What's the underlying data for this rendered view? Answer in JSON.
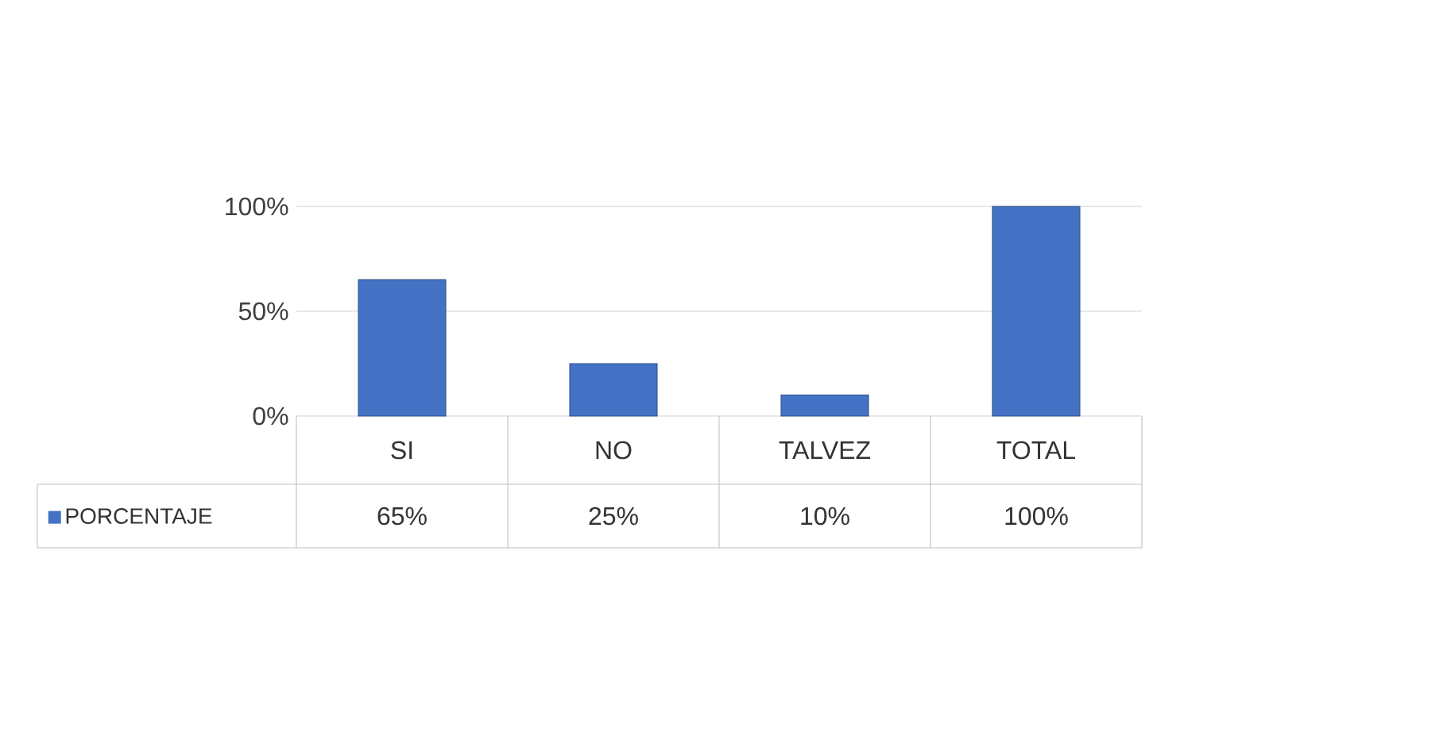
{
  "chart_data": {
    "type": "bar",
    "categories": [
      "SI",
      "NO",
      "TALVEZ",
      "TOTAL"
    ],
    "series": [
      {
        "name": "PORCENTAJE",
        "color": "#4472c4",
        "values": [
          65,
          25,
          10,
          100
        ],
        "value_labels": [
          "65%",
          "25%",
          "10%",
          "100%"
        ]
      }
    ],
    "ylim": [
      0,
      100
    ],
    "yticks": [
      {
        "value": 0,
        "label": "0%"
      },
      {
        "value": 50,
        "label": "50%"
      },
      {
        "value": 100,
        "label": "100%"
      }
    ],
    "grid": "y",
    "legend": "bottom"
  }
}
